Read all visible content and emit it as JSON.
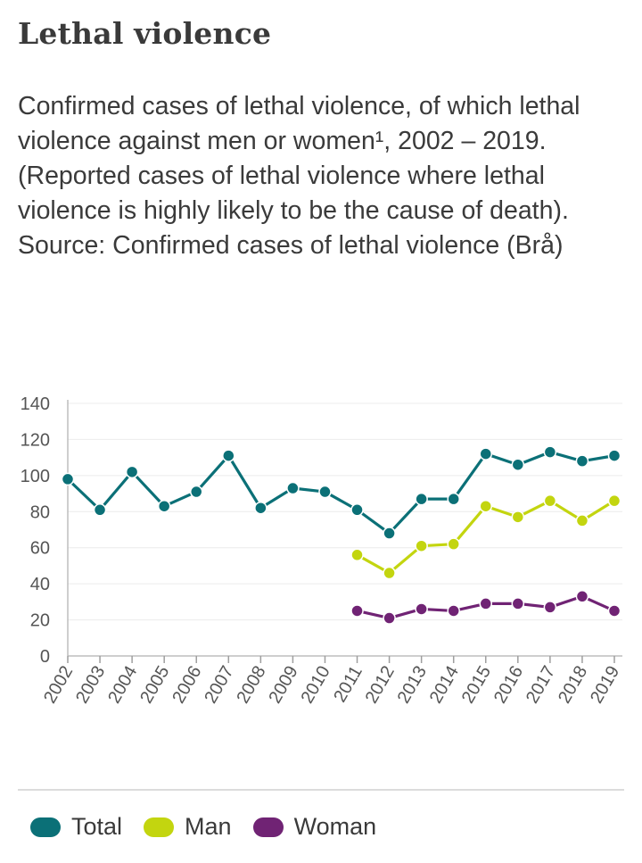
{
  "title": "Lethal violence",
  "subtitle": "Confirmed cases of lethal violence, of which lethal violence against men or women¹, 2002 – 2019. (Reported cases of lethal violence where lethal violence is highly likely to be the cause of death). Source: Confirmed cases of lethal violence (Brå)",
  "chart_data": {
    "type": "line",
    "x": [
      "2002",
      "2003",
      "2004",
      "2005",
      "2006",
      "2007",
      "2008",
      "2009",
      "2010",
      "2011",
      "2012",
      "2013",
      "2014",
      "2015",
      "2016",
      "2017",
      "2018",
      "2019"
    ],
    "series": [
      {
        "name": "Total",
        "color": "#0b7077",
        "values": [
          98,
          81,
          102,
          83,
          91,
          111,
          82,
          93,
          91,
          81,
          68,
          87,
          87,
          112,
          106,
          113,
          108,
          111
        ]
      },
      {
        "name": "Man",
        "color": "#c3d50f",
        "values": [
          null,
          null,
          null,
          null,
          null,
          null,
          null,
          null,
          null,
          56,
          46,
          61,
          62,
          83,
          77,
          86,
          75,
          86
        ]
      },
      {
        "name": "Woman",
        "color": "#702374",
        "values": [
          null,
          null,
          null,
          null,
          null,
          null,
          null,
          null,
          null,
          25,
          21,
          26,
          25,
          29,
          29,
          27,
          33,
          25
        ]
      }
    ],
    "ylim": [
      0,
      140
    ],
    "yticks": [
      0,
      20,
      40,
      60,
      80,
      100,
      120,
      140
    ],
    "grid": true,
    "legend": "bottom"
  }
}
